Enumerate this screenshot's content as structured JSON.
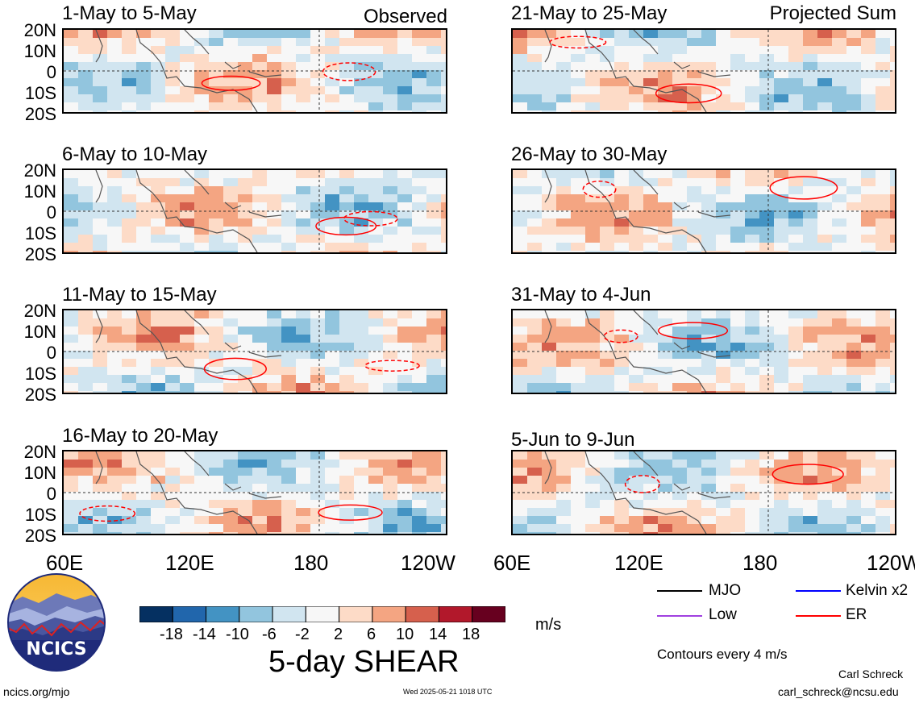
{
  "tags": {
    "observed": "Observed",
    "projected": "Projected Sum"
  },
  "panels": [
    {
      "title": "1-May to 5-May"
    },
    {
      "title": "6-May to 10-May"
    },
    {
      "title": "11-May to 15-May"
    },
    {
      "title": "16-May to 20-May"
    },
    {
      "title": "21-May to 25-May"
    },
    {
      "title": "26-May to 30-May"
    },
    {
      "title": "31-May to 4-Jun"
    },
    {
      "title": "5-Jun to 9-Jun"
    }
  ],
  "lat_labels": [
    "20N",
    "10N",
    "0",
    "10S",
    "20S"
  ],
  "lon_labels": [
    "60E",
    "120E",
    "180",
    "120W"
  ],
  "colorbar": {
    "title": "5-day SHEAR",
    "units": "m/s",
    "ticks": [
      "-18",
      "-14",
      "-10",
      "-6",
      "-2",
      "2",
      "6",
      "10",
      "14",
      "18"
    ],
    "colors": [
      "#053061",
      "#2166ac",
      "#4393c3",
      "#92c5de",
      "#d1e5f0",
      "#f7f7f7",
      "#fddbc7",
      "#f4a582",
      "#d6604d",
      "#b2182b",
      "#67001f"
    ]
  },
  "legend": {
    "items": [
      {
        "label": "MJO",
        "color": "#000000"
      },
      {
        "label": "Kelvin x2",
        "color": "#0000ff"
      },
      {
        "label": "Low",
        "color": "#a040e0"
      },
      {
        "label": "ER",
        "color": "#ff0000"
      }
    ],
    "note": "Contours every 4 m/s"
  },
  "logo": {
    "text": "NCICS"
  },
  "footer": {
    "url": "ncics.org/mjo",
    "timestamp": "Wed 2025-05-21 1018 UTC",
    "author": "Carl Schreck",
    "email": "carl_schreck@ncsu.edu"
  }
}
